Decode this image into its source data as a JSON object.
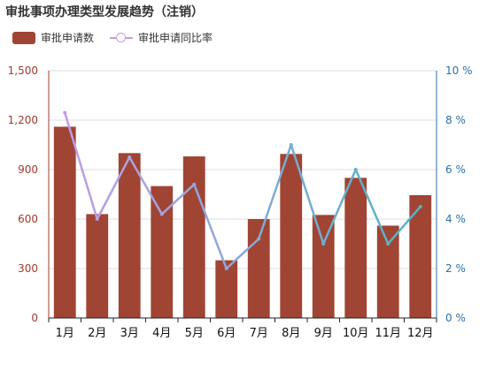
{
  "title": "审批事项办理类型发展趋势（注销）",
  "legend": {
    "bar_label": "审批申请数",
    "line_label": "审批申请同比率"
  },
  "colors": {
    "bar": "#a04434",
    "grid": "#dddddd",
    "left_axis": "#a03a2c",
    "right_axis": "#2b6fa8",
    "line_start": "#c59be8",
    "line_end": "#49b7c4"
  },
  "chart_data": {
    "type": "bar",
    "categories": [
      "1月",
      "2月",
      "3月",
      "4月",
      "5月",
      "6月",
      "7月",
      "8月",
      "9月",
      "10月",
      "11月",
      "12月"
    ],
    "series": [
      {
        "name": "审批申请数",
        "type": "bar",
        "axis": "left",
        "values": [
          1160,
          630,
          1000,
          800,
          980,
          350,
          600,
          995,
          625,
          850,
          560,
          745
        ]
      },
      {
        "name": "审批申请同比率",
        "type": "line",
        "axis": "right",
        "values": [
          8.3,
          4.0,
          6.5,
          4.2,
          5.4,
          2.0,
          3.2,
          7.0,
          3.0,
          6.0,
          3.0,
          4.5
        ]
      }
    ],
    "y_left": {
      "min": 0,
      "max": 1500,
      "ticks": [
        "0",
        "300",
        "600",
        "900",
        "1,200",
        "1,500"
      ]
    },
    "y_right": {
      "min": 0,
      "max": 10,
      "ticks": [
        "0 %",
        "2 %",
        "4 %",
        "6 %",
        "8 %",
        "10 %"
      ]
    },
    "grid": true,
    "legend_position": "top-left"
  }
}
